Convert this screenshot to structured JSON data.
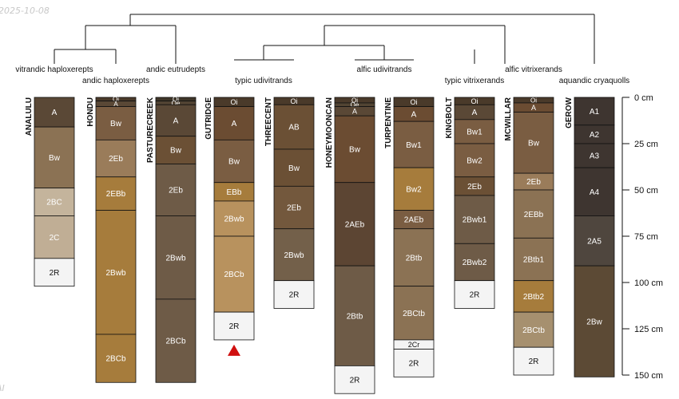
{
  "figure": {
    "date_stamp": "2025-10-08",
    "corner_mark": "AI",
    "depth_unit": "cm",
    "depth_ticks": [
      0,
      25,
      50,
      75,
      100,
      125,
      150
    ],
    "truncation_marker_color": "#d01010",
    "soil_colors": {
      "Oi": "#4a3a2a",
      "A_dark": "#5a4836",
      "A_med": "#6b4c32",
      "Bw_light": "#8b7254",
      "Bw_med": "#7a5d42",
      "B_orange": "#a67c3c",
      "C_pale": "#c4b49c",
      "R": "#f4f4f4"
    }
  },
  "taxa": [
    {
      "label": "vitrandic haploxerepts"
    },
    {
      "label": "andic haploxerepts"
    },
    {
      "label": "andic eutrudepts"
    },
    {
      "label": "typic udivitrands"
    },
    {
      "label": "alfic udivitrands"
    },
    {
      "label": "typic vitrixerands"
    },
    {
      "label": "alfic vitrixerands"
    },
    {
      "label": "aquandic cryaquolls"
    }
  ],
  "chart_data": {
    "type": "soil-profile-sketch",
    "depth_axis": {
      "unit": "cm",
      "min": 0,
      "max": 150,
      "ticks": [
        0,
        25,
        50,
        75,
        100,
        125,
        150
      ]
    },
    "profiles": [
      {
        "name": "ANALULU",
        "horizons": [
          {
            "name": "A",
            "top": 0,
            "bottom": 16,
            "color": "#5a4836"
          },
          {
            "name": "Bw",
            "top": 16,
            "bottom": 49,
            "color": "#8b7254"
          },
          {
            "name": "2BC",
            "top": 49,
            "bottom": 64,
            "color": "#c4b49c"
          },
          {
            "name": "2C",
            "top": 64,
            "bottom": 87,
            "color": "#c0ae95"
          },
          {
            "name": "2R",
            "top": 87,
            "bottom": 102,
            "color": "#f4f4f4"
          }
        ]
      },
      {
        "name": "HONDU",
        "horizons": [
          {
            "name": "Oi",
            "top": 0,
            "bottom": 2,
            "color": "#4a3a2a"
          },
          {
            "name": "A",
            "top": 2,
            "bottom": 5,
            "color": "#5a4836"
          },
          {
            "name": "Bw",
            "top": 5,
            "bottom": 23,
            "color": "#7a5d42"
          },
          {
            "name": "2Eb",
            "top": 23,
            "bottom": 43,
            "color": "#9a7c5a"
          },
          {
            "name": "2EBb",
            "top": 43,
            "bottom": 61,
            "color": "#a67c3c"
          },
          {
            "name": "2Bwb",
            "top": 61,
            "bottom": 128,
            "color": "#a67c3c"
          },
          {
            "name": "2BCb",
            "top": 128,
            "bottom": 154,
            "color": "#a67c3c"
          }
        ]
      },
      {
        "name": "PASTURECREEK",
        "horizons": [
          {
            "name": "Oi",
            "top": 0,
            "bottom": 2,
            "color": "#3e3528"
          },
          {
            "name": "Oe",
            "top": 2,
            "bottom": 4,
            "color": "#524433"
          },
          {
            "name": "A",
            "top": 4,
            "bottom": 21,
            "color": "#5a4836"
          },
          {
            "name": "Bw",
            "top": 21,
            "bottom": 36,
            "color": "#6b5035"
          },
          {
            "name": "2Eb",
            "top": 36,
            "bottom": 64,
            "color": "#6e5b47"
          },
          {
            "name": "2Bwb",
            "top": 64,
            "bottom": 109,
            "color": "#6e5b47"
          },
          {
            "name": "2BCb",
            "top": 109,
            "bottom": 154,
            "color": "#6e5b47"
          }
        ]
      },
      {
        "name": "GUTRIDGE",
        "truncated": true,
        "horizons": [
          {
            "name": "Oi",
            "top": 0,
            "bottom": 5,
            "color": "#4a3a2a"
          },
          {
            "name": "A",
            "top": 5,
            "bottom": 23,
            "color": "#6b4c32"
          },
          {
            "name": "Bw",
            "top": 23,
            "bottom": 46,
            "color": "#7a5d42"
          },
          {
            "name": "EBb",
            "top": 46,
            "bottom": 56,
            "color": "#a67c3c"
          },
          {
            "name": "2Bwb",
            "top": 56,
            "bottom": 75,
            "color": "#b8925e"
          },
          {
            "name": "2BCb",
            "top": 75,
            "bottom": 116,
            "color": "#b8925e"
          },
          {
            "name": "2R",
            "top": 116,
            "bottom": 131,
            "color": "#f4f4f4"
          }
        ]
      },
      {
        "name": "THREECENT",
        "horizons": [
          {
            "name": "Oi",
            "top": 0,
            "bottom": 4,
            "color": "#4a3a2a"
          },
          {
            "name": "AB",
            "top": 4,
            "bottom": 28,
            "color": "#6b5035"
          },
          {
            "name": "Bw",
            "top": 28,
            "bottom": 48,
            "color": "#6b5035"
          },
          {
            "name": "2Eb",
            "top": 48,
            "bottom": 71,
            "color": "#73583d"
          },
          {
            "name": "2Bwb",
            "top": 71,
            "bottom": 99,
            "color": "#73604a"
          },
          {
            "name": "2R",
            "top": 99,
            "bottom": 114,
            "color": "#f4f4f4"
          }
        ]
      },
      {
        "name": "HONEYMOONCAN",
        "horizons": [
          {
            "name": "Oi",
            "top": 0,
            "bottom": 3,
            "color": "#4a3a2a"
          },
          {
            "name": "Oe",
            "top": 3,
            "bottom": 5,
            "color": "#524433"
          },
          {
            "name": "A",
            "top": 5,
            "bottom": 10,
            "color": "#5a4836"
          },
          {
            "name": "Bw",
            "top": 10,
            "bottom": 46,
            "color": "#6b4c32"
          },
          {
            "name": "2AEb",
            "top": 46,
            "bottom": 91,
            "color": "#5c4533"
          },
          {
            "name": "2Btb",
            "top": 91,
            "bottom": 145,
            "color": "#6e5b47"
          },
          {
            "name": "2R",
            "top": 145,
            "bottom": 160,
            "color": "#f4f4f4"
          }
        ]
      },
      {
        "name": "TURPENTINE",
        "horizons": [
          {
            "name": "Oi",
            "top": 0,
            "bottom": 5,
            "color": "#4a3a2a"
          },
          {
            "name": "A",
            "top": 5,
            "bottom": 13,
            "color": "#6b4c32"
          },
          {
            "name": "Bw1",
            "top": 13,
            "bottom": 38,
            "color": "#7a5d42"
          },
          {
            "name": "Bw2",
            "top": 38,
            "bottom": 61,
            "color": "#a67c3c"
          },
          {
            "name": "2AEb",
            "top": 61,
            "bottom": 71,
            "color": "#7a5d42"
          },
          {
            "name": "2Btb",
            "top": 71,
            "bottom": 102,
            "color": "#8b7254"
          },
          {
            "name": "2BCtb",
            "top": 102,
            "bottom": 131,
            "color": "#8b7254"
          },
          {
            "name": "2Cr",
            "top": 131,
            "bottom": 136,
            "color": "#f4f4f4"
          },
          {
            "name": "2R",
            "top": 136,
            "bottom": 151,
            "color": "#f4f4f4"
          }
        ]
      },
      {
        "name": "KINGBOLT",
        "horizons": [
          {
            "name": "Oi",
            "top": 0,
            "bottom": 4,
            "color": "#4a3a2a"
          },
          {
            "name": "A",
            "top": 4,
            "bottom": 12,
            "color": "#5a4836"
          },
          {
            "name": "Bw1",
            "top": 12,
            "bottom": 25,
            "color": "#7a5d42"
          },
          {
            "name": "Bw2",
            "top": 25,
            "bottom": 43,
            "color": "#7a5d42"
          },
          {
            "name": "2Eb",
            "top": 43,
            "bottom": 53,
            "color": "#6b5035"
          },
          {
            "name": "2Bwb1",
            "top": 53,
            "bottom": 79,
            "color": "#6e5b47"
          },
          {
            "name": "2Bwb2",
            "top": 79,
            "bottom": 99,
            "color": "#6e5b47"
          },
          {
            "name": "2R",
            "top": 99,
            "bottom": 114,
            "color": "#f4f4f4"
          }
        ]
      },
      {
        "name": "MCWILLAR",
        "horizons": [
          {
            "name": "Oi",
            "top": 0,
            "bottom": 3,
            "color": "#4a3a2a"
          },
          {
            "name": "A",
            "top": 3,
            "bottom": 8,
            "color": "#6b4c32"
          },
          {
            "name": "Bw",
            "top": 8,
            "bottom": 41,
            "color": "#7a5d42"
          },
          {
            "name": "2Eb",
            "top": 41,
            "bottom": 50,
            "color": "#9a7c5a"
          },
          {
            "name": "2EBb",
            "top": 50,
            "bottom": 76,
            "color": "#8b7254"
          },
          {
            "name": "2Btb1",
            "top": 76,
            "bottom": 99,
            "color": "#8b7254"
          },
          {
            "name": "2Btb2",
            "top": 99,
            "bottom": 116,
            "color": "#a67c3c"
          },
          {
            "name": "2BCtb",
            "top": 116,
            "bottom": 135,
            "color": "#a6906f"
          },
          {
            "name": "2R",
            "top": 135,
            "bottom": 150,
            "color": "#f4f4f4"
          }
        ]
      },
      {
        "name": "GEROW",
        "horizons": [
          {
            "name": "A1",
            "top": 0,
            "bottom": 15,
            "color": "#3e3530"
          },
          {
            "name": "A2",
            "top": 15,
            "bottom": 25,
            "color": "#3e3530"
          },
          {
            "name": "A3",
            "top": 25,
            "bottom": 38,
            "color": "#3e3530"
          },
          {
            "name": "A4",
            "top": 38,
            "bottom": 64,
            "color": "#3e3530"
          },
          {
            "name": "2A5",
            "top": 64,
            "bottom": 91,
            "color": "#4f463e"
          },
          {
            "name": "2Bw",
            "top": 91,
            "bottom": 151,
            "color": "#5c4a35"
          }
        ]
      }
    ]
  }
}
